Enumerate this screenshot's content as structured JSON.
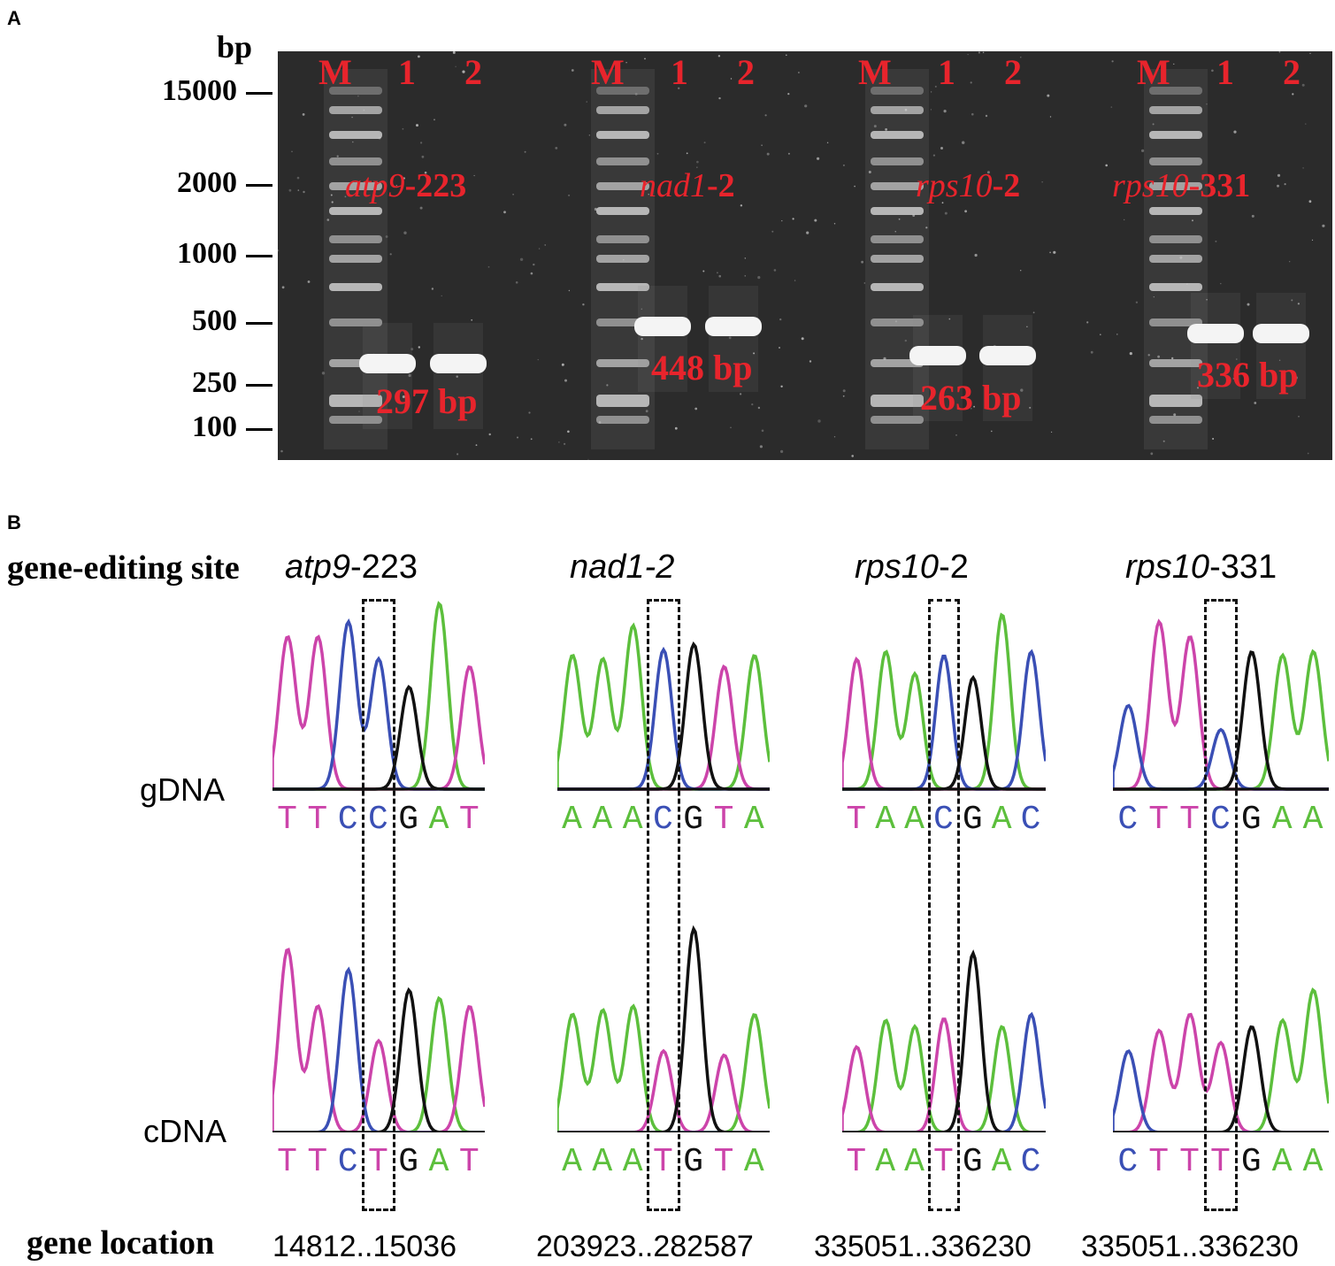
{
  "panel_a": {
    "letter": "A",
    "bp_label": "bp",
    "markers": [
      "15000",
      "2000",
      "1000",
      "500",
      "250",
      "100"
    ],
    "gels": [
      {
        "lanes": [
          "M",
          "1",
          "2"
        ],
        "gene": "atp9",
        "site": "-223",
        "size": "297 bp"
      },
      {
        "lanes": [
          "M",
          "1",
          "2"
        ],
        "gene": "nad1",
        "site": "-2",
        "size": "448 bp"
      },
      {
        "lanes": [
          "M",
          "1",
          "2"
        ],
        "gene": "rps10",
        "site": "-2",
        "size": "263 bp"
      },
      {
        "lanes": [
          "M",
          "1",
          "2"
        ],
        "gene": "rps10",
        "site": "-331",
        "size": "336 bp"
      }
    ]
  },
  "panel_b": {
    "letter": "B",
    "site_label": "gene-editing site",
    "row_labels": [
      "gDNA",
      "cDNA"
    ],
    "location_label": "gene location",
    "sites": [
      {
        "gene": "atp9",
        "site": "-223",
        "gdna": [
          "T",
          "T",
          "C",
          "C",
          "G",
          "A",
          "T"
        ],
        "cdna": [
          "T",
          "T",
          "C",
          "T",
          "G",
          "A",
          "T"
        ],
        "location": "14812..15036"
      },
      {
        "gene": "nad1-2",
        "site": "",
        "gdna": [
          "A",
          "A",
          "A",
          "C",
          "G",
          "T",
          "A"
        ],
        "cdna": [
          "A",
          "A",
          "A",
          "T",
          "G",
          "T",
          "A"
        ],
        "location": "203923..282587"
      },
      {
        "gene": "rps10",
        "site": "-2",
        "gdna": [
          "T",
          "A",
          "A",
          "C",
          "G",
          "A",
          "C"
        ],
        "cdna": [
          "T",
          "A",
          "A",
          "T",
          "G",
          "A",
          "C"
        ],
        "location": "335051..336230"
      },
      {
        "gene": "rps10",
        "site": "-331",
        "gdna": [
          "C",
          "T",
          "T",
          "C",
          "G",
          "A",
          "A"
        ],
        "cdna": [
          "C",
          "T",
          "T",
          "T",
          "G",
          "A",
          "A"
        ],
        "location": "335051..336230"
      }
    ],
    "base_colors": {
      "A": "#5cbf3c",
      "T": "#cc44aa",
      "C": "#3a4fb5",
      "G": "#111111"
    }
  }
}
